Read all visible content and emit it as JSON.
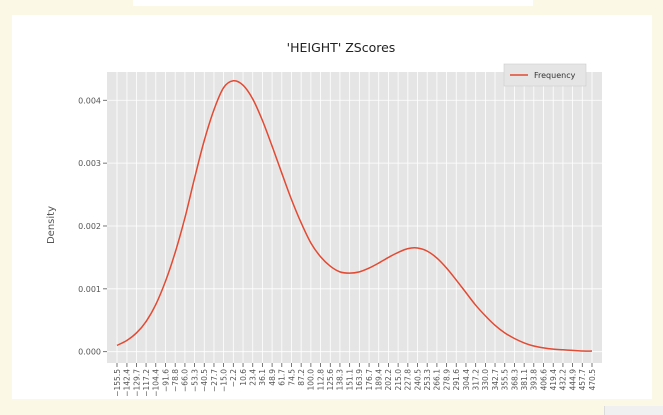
{
  "chart_data": {
    "type": "line",
    "title": "'HEIGHT' ZScores",
    "xlabel": "",
    "ylabel": "Density",
    "legend": {
      "placement": "top-right",
      "entries": [
        "Frequency"
      ]
    },
    "grid": true,
    "ylim": [
      -0.00018,
      0.00445
    ],
    "yticks": [
      0.0,
      0.001,
      0.002,
      0.003,
      0.004
    ],
    "ytick_labels": [
      "0.000",
      "0.001",
      "0.002",
      "0.003",
      "0.004"
    ],
    "x_categories": [
      "−155.5",
      "−142.4",
      "−129.7",
      "−117.2",
      "−104.4",
      "−91.6",
      "−78.8",
      "−66.0",
      "−53.3",
      "−40.5",
      "−27.7",
      "−15.0",
      "−2.2",
      "10.6",
      "23.4",
      "36.1",
      "48.9",
      "61.7",
      "74.5",
      "87.2",
      "100.0",
      "112.8",
      "125.6",
      "138.3",
      "151.1",
      "163.9",
      "176.7",
      "189.4",
      "202.2",
      "215.0",
      "227.8",
      "240.5",
      "253.3",
      "266.1",
      "278.9",
      "291.6",
      "304.4",
      "317.2",
      "330.0",
      "342.7",
      "355.5",
      "368.3",
      "381.1",
      "393.8",
      "406.6",
      "419.4",
      "432.2",
      "444.9",
      "457.7",
      "470.5"
    ],
    "series": [
      {
        "name": "Frequency",
        "color": "#e24a33",
        "x": [
          -155.5,
          -142.4,
          -129.7,
          -117.2,
          -104.4,
          -91.6,
          -78.8,
          -66.0,
          -53.3,
          -40.5,
          -27.7,
          -15.0,
          -2.2,
          10.6,
          23.4,
          36.1,
          48.9,
          61.7,
          74.5,
          87.2,
          100.0,
          112.8,
          125.6,
          138.3,
          151.1,
          163.9,
          176.7,
          189.4,
          202.2,
          215.0,
          227.8,
          240.5,
          253.3,
          266.1,
          278.9,
          291.6,
          304.4,
          317.2,
          330.0,
          342.7,
          355.5,
          368.3,
          381.1,
          393.8,
          406.6,
          419.4,
          432.2,
          444.9,
          457.7,
          470.5
        ],
        "y": [
          0.0001,
          0.00018,
          0.0003,
          0.00048,
          0.00075,
          0.00112,
          0.00158,
          0.00213,
          0.00276,
          0.00336,
          0.00385,
          0.0042,
          0.00431,
          0.00424,
          0.00402,
          0.00368,
          0.00327,
          0.00284,
          0.00242,
          0.00205,
          0.00173,
          0.00151,
          0.00136,
          0.00127,
          0.00125,
          0.00127,
          0.00133,
          0.00141,
          0.0015,
          0.00158,
          0.00164,
          0.00165,
          0.0016,
          0.00149,
          0.00133,
          0.00114,
          0.00094,
          0.00074,
          0.00057,
          0.00042,
          0.0003,
          0.00021,
          0.00014,
          9e-05,
          6e-05,
          4e-05,
          3e-05,
          2e-05,
          1e-05,
          1e-05
        ]
      }
    ]
  }
}
